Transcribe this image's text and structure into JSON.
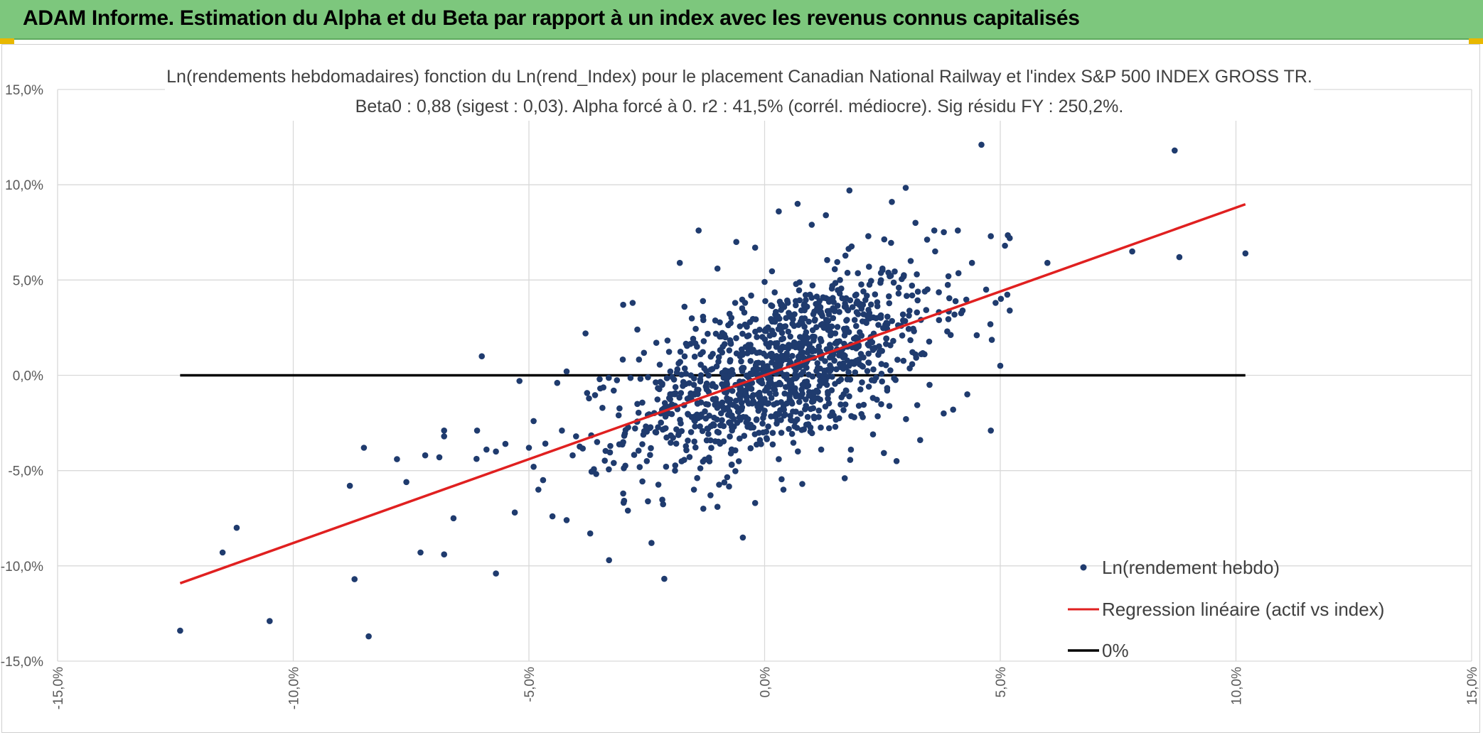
{
  "header": {
    "title": "ADAM Informe. Estimation du Alpha et du Beta par rapport à un index avec les revenus connus capitalisés"
  },
  "colors": {
    "header_bg": "#7dc77d",
    "points": "#1f3b6e",
    "regression": "#e02020",
    "zero_line": "#000000"
  },
  "chart_data": {
    "type": "scatter",
    "title": "Ln(rendements hebdomadaires) fonction du Ln(rend_Index) pour le placement Canadian National Railway et l'index S&P 500 INDEX GROSS TR.",
    "subtitle": "Beta0 : 0,88 (sigest : 0,03). Alpha forcé à 0. r2 : 41,5% (corrél. médiocre). Sig résidu FY : 250,2%.",
    "xlim": [
      -15,
      15
    ],
    "ylim": [
      -15,
      15
    ],
    "x_ticks": [
      -15,
      -10,
      -5,
      0,
      5,
      10,
      15
    ],
    "y_ticks": [
      -15,
      -10,
      -5,
      0,
      5,
      10,
      15
    ],
    "x_tick_labels": [
      "-15,0%",
      "-10,0%",
      "-5,0%",
      "0,0%",
      "5,0%",
      "10,0%",
      "15,0%"
    ],
    "y_tick_labels": [
      "-15,0%",
      "-10,0%",
      "-5,0%",
      "0,0%",
      "5,0%",
      "10,0%",
      "15,0%"
    ],
    "grid": true,
    "legend_position": "bottom-right",
    "series": [
      {
        "name": "Ln(rendement hebdo)",
        "kind": "points",
        "sample_points": [
          [
            -12.4,
            -13.4
          ],
          [
            -11.5,
            -9.3
          ],
          [
            -11.2,
            -8.0
          ],
          [
            -10.5,
            -12.9
          ],
          [
            -8.8,
            -5.8
          ],
          [
            -8.7,
            -10.7
          ],
          [
            -8.5,
            -3.8
          ],
          [
            -8.4,
            -13.7
          ],
          [
            -7.8,
            -4.4
          ],
          [
            -7.6,
            -5.6
          ],
          [
            -7.3,
            -9.3
          ],
          [
            -7.2,
            -4.2
          ],
          [
            -6.9,
            -4.3
          ],
          [
            -6.8,
            -9.4
          ],
          [
            -6.8,
            -3.2
          ],
          [
            -6.8,
            -2.9
          ],
          [
            -6.6,
            -7.5
          ],
          [
            -6.1,
            -2.9
          ],
          [
            -6.0,
            1.0
          ],
          [
            -5.9,
            -3.9
          ],
          [
            -5.7,
            -10.4
          ],
          [
            -5.7,
            -4.0
          ],
          [
            -5.5,
            -3.6
          ],
          [
            -5.3,
            -7.2
          ],
          [
            -5.2,
            -0.3
          ],
          [
            -5.0,
            -3.8
          ],
          [
            -4.9,
            -4.8
          ],
          [
            -4.9,
            -2.4
          ],
          [
            -4.8,
            -6.0
          ],
          [
            -4.7,
            -5.5
          ],
          [
            -4.5,
            -7.4
          ],
          [
            -4.4,
            -0.4
          ],
          [
            -4.3,
            -2.9
          ],
          [
            -4.2,
            -7.6
          ],
          [
            -4.2,
            0.2
          ],
          [
            -4.0,
            -3.2
          ],
          [
            -3.8,
            2.2
          ],
          [
            -3.7,
            -8.3
          ],
          [
            -3.5,
            -0.2
          ],
          [
            -3.3,
            -9.7
          ],
          [
            -3.2,
            -4.6
          ],
          [
            -3.2,
            -0.8
          ],
          [
            -3.0,
            -6.2
          ],
          [
            -3.0,
            3.7
          ],
          [
            -2.9,
            -7.1
          ],
          [
            -2.8,
            3.8
          ],
          [
            -2.7,
            -1.5
          ],
          [
            -2.7,
            2.4
          ],
          [
            -2.5,
            -4.5
          ],
          [
            -2.4,
            -8.8
          ],
          [
            -2.3,
            -3.0
          ],
          [
            -2.2,
            -2.0
          ],
          [
            -2.0,
            0.2
          ],
          [
            -1.9,
            -5.0
          ],
          [
            -1.9,
            -1.6
          ],
          [
            -1.8,
            5.9
          ],
          [
            -1.7,
            3.6
          ],
          [
            -1.5,
            -6.0
          ],
          [
            -1.5,
            -0.5
          ],
          [
            -1.4,
            7.6
          ],
          [
            -1.3,
            -7.0
          ],
          [
            -1.3,
            2.9
          ],
          [
            -1.2,
            -2.8
          ],
          [
            -1.0,
            5.6
          ],
          [
            -1.0,
            -6.9
          ],
          [
            -0.9,
            1.2
          ],
          [
            -0.8,
            -1.2
          ],
          [
            -0.7,
            -4.7
          ],
          [
            -0.6,
            7.0
          ],
          [
            -0.5,
            -0.7
          ],
          [
            -0.4,
            -2.2
          ],
          [
            -0.3,
            1.6
          ],
          [
            -0.2,
            -6.7
          ],
          [
            -0.2,
            6.7
          ],
          [
            -0.1,
            -3.4
          ],
          [
            0.0,
            4.9
          ],
          [
            0.1,
            -0.5
          ],
          [
            0.2,
            2.9
          ],
          [
            0.3,
            -4.4
          ],
          [
            0.3,
            8.6
          ],
          [
            0.4,
            -6.0
          ],
          [
            0.5,
            1.4
          ],
          [
            0.6,
            -1.9
          ],
          [
            0.7,
            9.0
          ],
          [
            0.8,
            -5.7
          ],
          [
            0.9,
            3.6
          ],
          [
            1.0,
            7.9
          ],
          [
            1.1,
            -0.8
          ],
          [
            1.2,
            -3.9
          ],
          [
            1.3,
            8.4
          ],
          [
            1.4,
            2.1
          ],
          [
            1.5,
            -2.7
          ],
          [
            1.6,
            5.0
          ],
          [
            1.7,
            -5.4
          ],
          [
            1.8,
            9.7
          ],
          [
            1.9,
            0.6
          ],
          [
            2.0,
            -1.6
          ],
          [
            2.1,
            3.2
          ],
          [
            2.2,
            7.3
          ],
          [
            2.3,
            -3.1
          ],
          [
            2.5,
            5.6
          ],
          [
            2.6,
            -0.8
          ],
          [
            2.7,
            9.1
          ],
          [
            2.8,
            -4.5
          ],
          [
            2.9,
            2.6
          ],
          [
            3.0,
            -2.3
          ],
          [
            3.1,
            6.0
          ],
          [
            3.2,
            1.1
          ],
          [
            3.2,
            8.0
          ],
          [
            3.3,
            -3.4
          ],
          [
            3.4,
            4.4
          ],
          [
            3.5,
            -0.5
          ],
          [
            3.6,
            7.6
          ],
          [
            3.7,
            2.9
          ],
          [
            3.8,
            -2.0
          ],
          [
            3.9,
            5.2
          ],
          [
            4.0,
            -1.8
          ],
          [
            4.1,
            7.6
          ],
          [
            4.2,
            3.4
          ],
          [
            4.3,
            -1.0
          ],
          [
            4.4,
            5.9
          ],
          [
            4.5,
            2.1
          ],
          [
            4.6,
            12.1
          ],
          [
            4.7,
            4.5
          ],
          [
            4.8,
            -2.9
          ],
          [
            4.8,
            7.3
          ],
          [
            4.9,
            3.8
          ],
          [
            5.0,
            0.5
          ],
          [
            5.1,
            6.8
          ],
          [
            5.2,
            3.4
          ],
          [
            5.2,
            7.2
          ],
          [
            6.0,
            5.9
          ],
          [
            7.8,
            6.5
          ],
          [
            8.7,
            11.8
          ],
          [
            8.8,
            6.2
          ],
          [
            10.2,
            6.4
          ]
        ]
      },
      {
        "name": "Regression linéaire (actif vs index)",
        "kind": "line",
        "slope": 0.88,
        "intercept": 0,
        "x_range": [
          -12.4,
          10.2
        ]
      },
      {
        "name": "0%",
        "kind": "line",
        "slope": 0,
        "intercept": 0,
        "x_range": [
          -12.4,
          10.2
        ]
      }
    ]
  }
}
